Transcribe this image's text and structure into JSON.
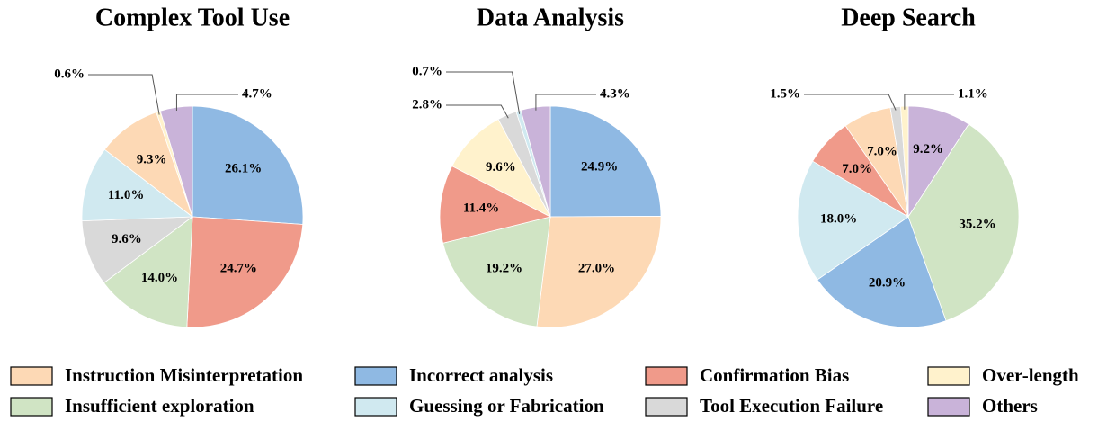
{
  "chart_data": [
    {
      "type": "pie",
      "title": "Complex Tool Use",
      "categories": [
        "Incorrect analysis",
        "Confirmation Bias",
        "Insufficient exploration",
        "Tool Execution Failure",
        "Guessing or Fabrication",
        "Instruction Misinterpretation",
        "Over-length",
        "Others"
      ],
      "values": [
        26.1,
        24.7,
        14.0,
        9.6,
        11.0,
        9.3,
        0.6,
        4.7
      ],
      "value_labels": [
        "26.1%",
        "24.7%",
        "14.0%",
        "9.6%",
        "11.0%",
        "9.3%",
        "0.6%",
        "4.7%"
      ]
    },
    {
      "type": "pie",
      "title": "Data Analysis",
      "categories": [
        "Incorrect analysis",
        "Instruction Misinterpretation",
        "Insufficient exploration",
        "Confirmation Bias",
        "Over-length",
        "Tool Execution Failure",
        "Guessing or Fabrication",
        "Others"
      ],
      "values": [
        24.9,
        27.0,
        19.2,
        11.4,
        9.6,
        2.8,
        0.7,
        4.3
      ],
      "value_labels": [
        "24.9%",
        "27.0%",
        "19.2%",
        "11.4%",
        "9.6%",
        "2.8%",
        "0.7%",
        "4.3%"
      ]
    },
    {
      "type": "pie",
      "title": "Deep Search",
      "categories": [
        "Others",
        "Insufficient exploration",
        "Incorrect analysis",
        "Guessing or Fabrication",
        "Confirmation Bias",
        "Instruction Misinterpretation",
        "Tool Execution Failure",
        "Over-length"
      ],
      "values": [
        9.2,
        35.2,
        20.9,
        18.0,
        7.0,
        7.0,
        1.5,
        1.1
      ],
      "value_labels": [
        "9.2%",
        "35.2%",
        "20.9%",
        "18.0%",
        "7.0%",
        "7.0%",
        "1.5%",
        "1.1%"
      ]
    }
  ],
  "legend": [
    {
      "name": "Instruction Misinterpretation",
      "color": "#fdd9b5"
    },
    {
      "name": "Incorrect analysis",
      "color": "#8fb9e3"
    },
    {
      "name": "Confirmation Bias",
      "color": "#f09a8a"
    },
    {
      "name": "Over-length",
      "color": "#fff2cc"
    },
    {
      "name": "Insufficient exploration",
      "color": "#d0e4c4"
    },
    {
      "name": "Guessing or Fabrication",
      "color": "#d0e9f0"
    },
    {
      "name": "Tool Execution Failure",
      "color": "#d9d9d9"
    },
    {
      "name": "Others",
      "color": "#c9b3d9"
    }
  ]
}
